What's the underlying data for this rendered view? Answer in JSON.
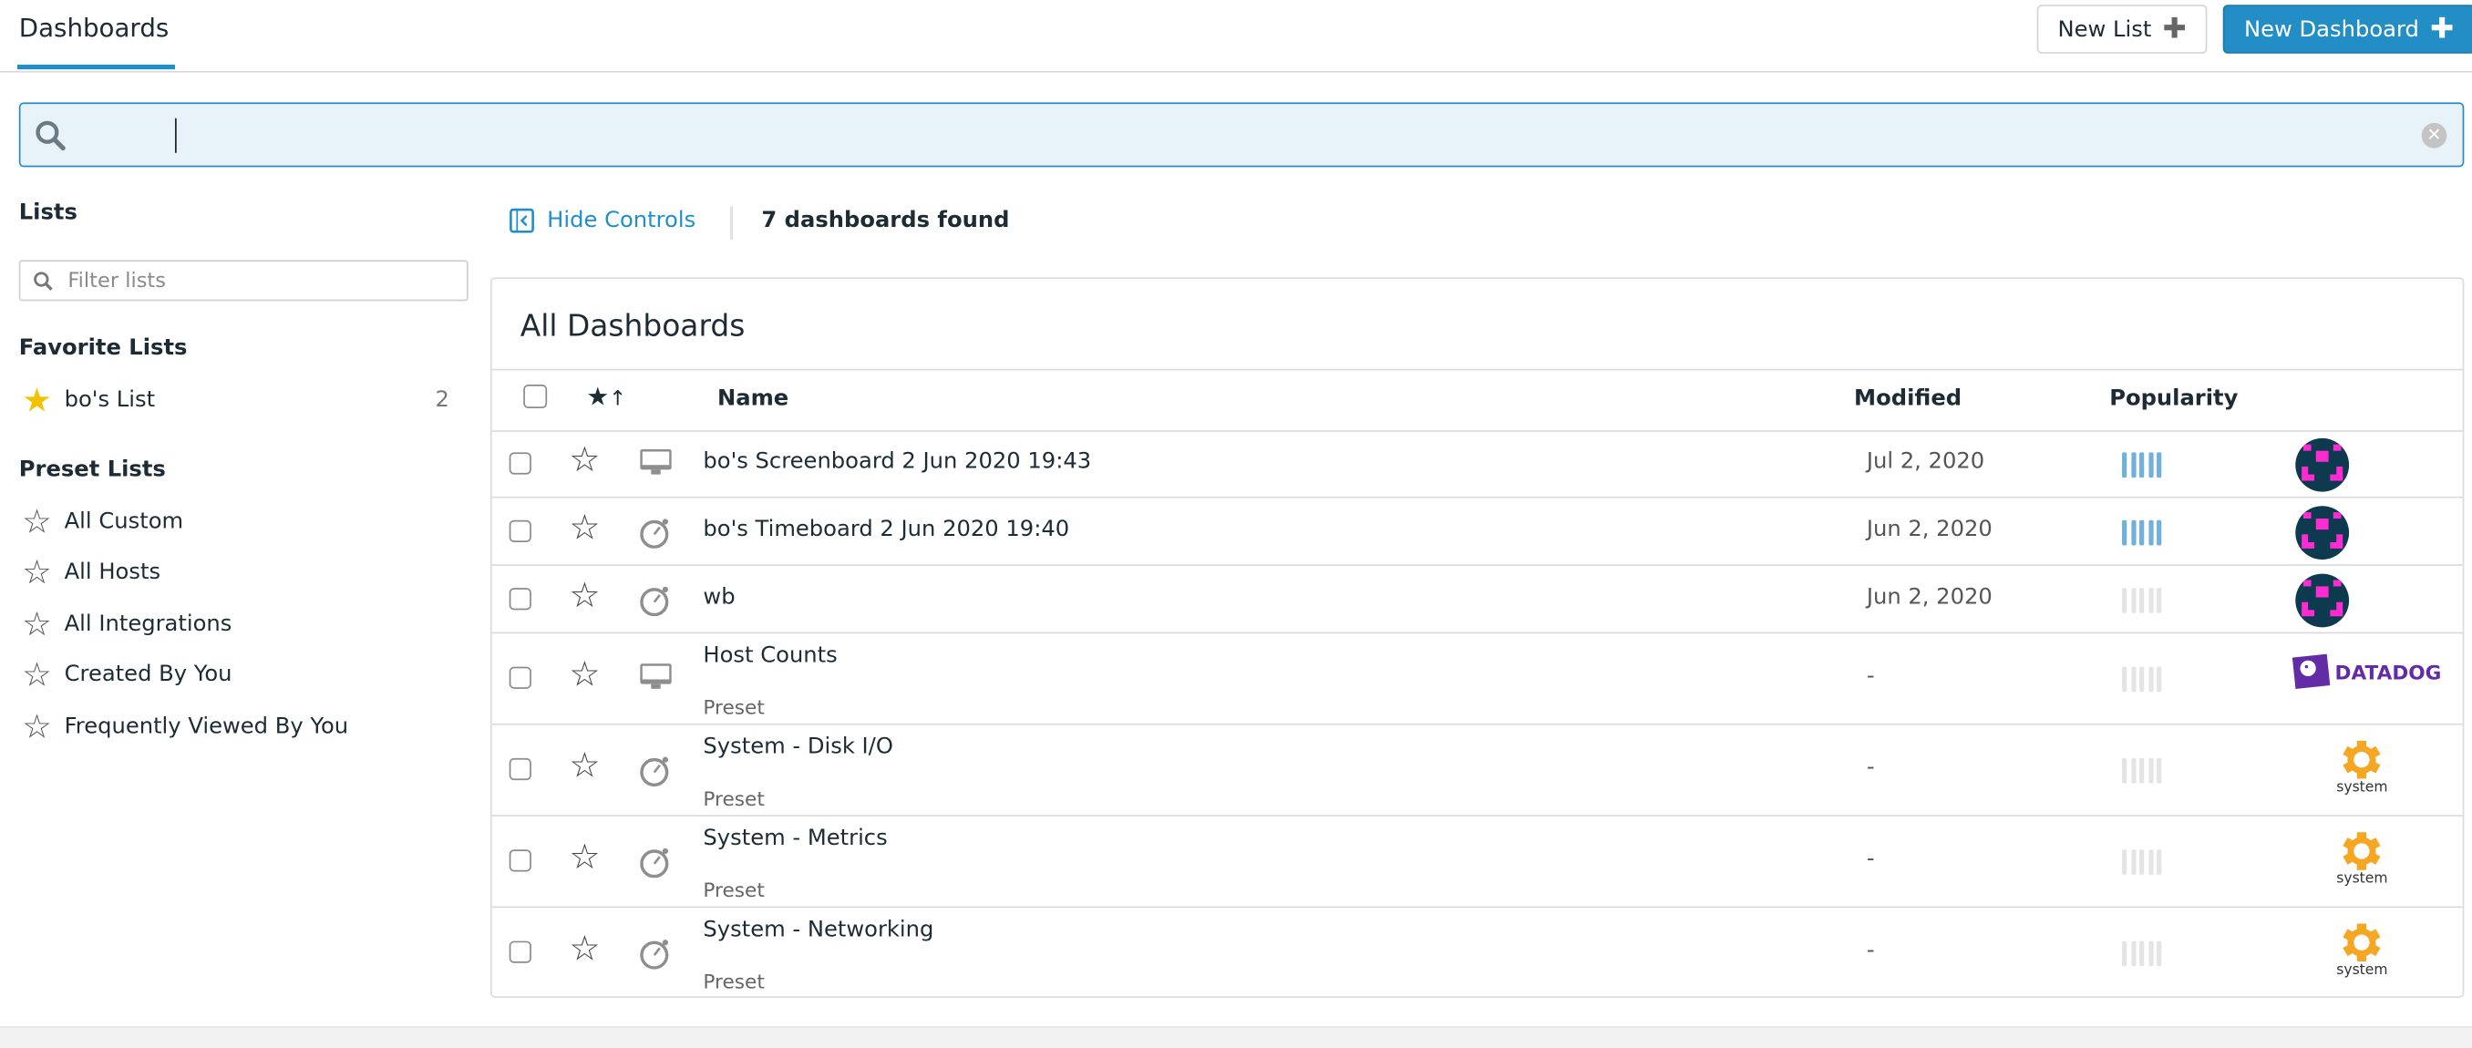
{
  "header": {
    "title": "Dashboards",
    "new_list_label": "New List",
    "new_dashboard_label": "New Dashboard",
    "accent": "#1f8ecd"
  },
  "search": {
    "value": "",
    "placeholder": ""
  },
  "sidebar": {
    "lists_heading": "Lists",
    "filter_placeholder": "Filter lists",
    "favorites_heading": "Favorite Lists",
    "favorites": [
      {
        "label": "bo's List",
        "count": "2",
        "icon": "star-filled-icon"
      }
    ],
    "presets_heading": "Preset Lists",
    "presets": [
      {
        "label": "All Custom"
      },
      {
        "label": "All Hosts"
      },
      {
        "label": "All Integrations"
      },
      {
        "label": "Created By You"
      },
      {
        "label": "Frequently Viewed By You"
      }
    ]
  },
  "controls": {
    "hide_label": "Hide Controls",
    "found": "7 dashboards found"
  },
  "table": {
    "title": "All Dashboards",
    "columns": {
      "name": "Name",
      "modified": "Modified",
      "popularity": "Popularity"
    },
    "rows": [
      {
        "name": "bo's Screenboard 2 Jun 2020 19:43",
        "sub": "",
        "type": "screenboard-icon",
        "modified": "Jul 2, 2020",
        "popularity": 5,
        "author": "avatar"
      },
      {
        "name": "bo's Timeboard 2 Jun 2020 19:40",
        "sub": "",
        "type": "timeboard-icon",
        "modified": "Jun 2, 2020",
        "popularity": 5,
        "author": "avatar"
      },
      {
        "name": "wb",
        "sub": "",
        "type": "timeboard-icon",
        "modified": "Jun 2, 2020",
        "popularity": 0,
        "author": "avatar"
      },
      {
        "name": "Host Counts",
        "sub": "Preset",
        "type": "screenboard-icon",
        "modified": "-",
        "popularity": 0,
        "author": "datadog",
        "author_label": "DATADOG"
      },
      {
        "name": "System - Disk I/O",
        "sub": "Preset",
        "type": "timeboard-icon",
        "modified": "-",
        "popularity": 0,
        "author": "system",
        "author_label": "system"
      },
      {
        "name": "System - Metrics",
        "sub": "Preset",
        "type": "timeboard-icon",
        "modified": "-",
        "popularity": 0,
        "author": "system",
        "author_label": "system"
      },
      {
        "name": "System - Networking",
        "sub": "Preset",
        "type": "timeboard-icon",
        "modified": "-",
        "popularity": 0,
        "author": "system",
        "author_label": "system"
      }
    ]
  },
  "colors": {
    "popularity_on": "#6fb0dc",
    "popularity_off": "#e4e4e4",
    "avatar_bg": "#0e3a4f",
    "avatar_fg": "#ff2bd2",
    "system": "#f5a623",
    "datadog": "#632ca6"
  }
}
